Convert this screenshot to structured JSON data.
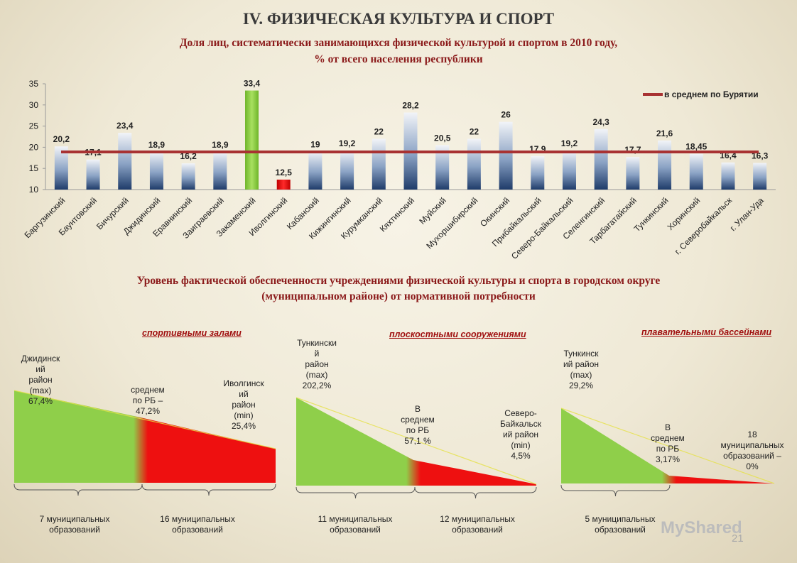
{
  "page_title": "IV. ФИЗИЧЕСКАЯ КУЛЬТУРА И СПОРТ",
  "chart_data": [
    {
      "type": "bar",
      "title_line1": "Доля лиц, систематически занимающихся физической культурой и спортом в 2010 году,",
      "title_line2": "% от всего населения республики",
      "ylim": [
        10,
        35
      ],
      "yticks": [
        10,
        15,
        20,
        25,
        30,
        35
      ],
      "categories": [
        "Баргузинский",
        "Баунтовский",
        "Бичурский",
        "Джидинский",
        "Еравнинский",
        "Заиграевский",
        "Закаменский",
        "Иволгинский",
        "Кабанский",
        "Кижингинский",
        "Курумканский",
        "Кяхтинский",
        "Муйский",
        "Мухоршибирский",
        "Окинский",
        "Прибайкальский",
        "Северо-Байкальский",
        "Селенгинский",
        "Тарбагатайский",
        "Тункинский",
        "Хоринский",
        "г. Северобайкальск",
        "г. Улан-Уда"
      ],
      "values": [
        20.2,
        17.1,
        23.4,
        18.9,
        16.2,
        18.9,
        33.4,
        12.5,
        19,
        19.2,
        22,
        28.2,
        20.5,
        22,
        26,
        17.9,
        19.2,
        24.3,
        17.7,
        21.6,
        18.45,
        16.4,
        16.3
      ],
      "value_labels": [
        "20,2",
        "17,1",
        "23,4",
        "18,9",
        "16,2",
        "18,9",
        "33,4",
        "12,5",
        "19",
        "19,2",
        "22",
        "28,2",
        "20,5",
        "22",
        "26",
        "17,9",
        "19,2",
        "24,3",
        "17,7",
        "21,6",
        "18,45",
        "16,4",
        "16,3"
      ],
      "highlight_max_color": "#8fd13f",
      "highlight_min_color": "#e01010",
      "bar_color": "#2b4a7a",
      "average": {
        "value": 18.9,
        "label": "в среднем по Бурятии",
        "color": "#a83232"
      }
    },
    {
      "type": "area",
      "title_line1": "Уровень фактической обеспеченности учреждениями физической культуры и спорта в городском округе",
      "title_line2": "(муниципальном районе) от нормативной потребности",
      "panels": [
        {
          "label": "спортивными залами",
          "max": {
            "text": "Джидинск\nий\nрайон\n(max)\n67,4%",
            "value": 67.4
          },
          "avg": {
            "text": "среднем\nпо РБ –\n47,2%",
            "value": 47.2
          },
          "min": {
            "text": "Иволгинск\nий\nрайон\n(min)\n25,4%",
            "value": 25.4
          },
          "left_count": "7 муниципальных\nобразований",
          "right_count": "16 муниципальных\nобразований"
        },
        {
          "label": "плоскостными сооружениями",
          "max": {
            "text": "Тункински\nй\nрайон\n(max)\n202,2%",
            "value": 202.2
          },
          "avg": {
            "text": "В\nсреднем\nпо РБ\n57,1 %",
            "value": 57.1
          },
          "min": {
            "text": "Северо-\nБайкальск\nий район\n(min)\n4,5%",
            "value": 4.5
          },
          "left_count": "11 муниципальных\nобразований",
          "right_count": "12 муниципальных\nобразований"
        },
        {
          "label": "плавательными бассейнами",
          "max": {
            "text": "Тункинск\nий район\n(max)\n29,2%",
            "value": 29.2
          },
          "avg": {
            "text": "В\nсреднем\nпо РБ\n3,17%",
            "value": 3.17
          },
          "min": {
            "text": "18\nмуниципальных\nобразований –\n0%",
            "value": 0
          },
          "left_count": "5 муниципальных\nобразований",
          "right_count": ""
        }
      ],
      "green_color": "#8fcf4a",
      "red_color": "#ee1010"
    }
  ],
  "page_number": "21",
  "watermark": "MyShared"
}
